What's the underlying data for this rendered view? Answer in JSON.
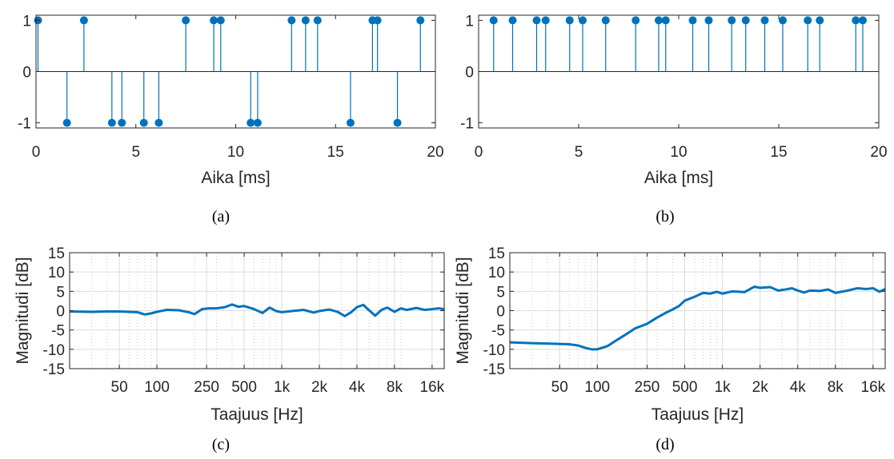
{
  "colors": {
    "series": "#0072bd",
    "axis": "#262626",
    "grid_major": "#dcdcdc",
    "grid_minor": "#e6e6e6"
  },
  "chart_data": [
    {
      "id": "a",
      "type": "stem",
      "caption": "(a)",
      "xlabel": "Aika [ms]",
      "ylabel": "",
      "xlim": [
        0,
        20
      ],
      "ylim": [
        -1.1,
        1.1
      ],
      "xticks": [
        0,
        5,
        10,
        15,
        20
      ],
      "xtick_labels": [
        "0",
        "5",
        "10",
        "15",
        "20"
      ],
      "yticks": [
        -1,
        0,
        1
      ],
      "ytick_labels": [
        "-1",
        "0",
        "1"
      ],
      "grid": false,
      "x": [
        0.1,
        1.55,
        2.4,
        3.8,
        4.3,
        5.4,
        6.15,
        7.5,
        8.9,
        9.25,
        10.75,
        11.1,
        12.8,
        13.5,
        14.1,
        15.75,
        16.85,
        17.1,
        18.1,
        19.25
      ],
      "y": [
        1,
        -1,
        1,
        -1,
        -1,
        -1,
        -1,
        1,
        1,
        1,
        -1,
        -1,
        1,
        1,
        1,
        -1,
        1,
        1,
        -1,
        1
      ]
    },
    {
      "id": "b",
      "type": "stem",
      "caption": "(b)",
      "xlabel": "Aika [ms]",
      "ylabel": "",
      "xlim": [
        0,
        20
      ],
      "ylim": [
        -1.1,
        1.1
      ],
      "xticks": [
        0,
        5,
        10,
        15,
        20
      ],
      "xtick_labels": [
        "0",
        "5",
        "10",
        "15",
        "20"
      ],
      "yticks": [
        -1,
        0,
        1
      ],
      "ytick_labels": [
        "-1",
        "0",
        "1"
      ],
      "grid": false,
      "x": [
        0.75,
        1.7,
        2.9,
        3.35,
        4.55,
        5.2,
        6.35,
        7.85,
        9.0,
        9.35,
        10.7,
        11.5,
        12.65,
        13.35,
        14.3,
        15.2,
        16.45,
        17.05,
        18.85,
        19.2
      ],
      "y": [
        1,
        1,
        1,
        1,
        1,
        1,
        1,
        1,
        1,
        1,
        1,
        1,
        1,
        1,
        1,
        1,
        1,
        1,
        1,
        1
      ]
    },
    {
      "id": "c",
      "type": "line",
      "caption": "(c)",
      "xlabel": "Taajuus [Hz]",
      "ylabel": "Magnitudi [dB]",
      "xscale": "log",
      "xlim": [
        20,
        20000
      ],
      "ylim": [
        -15,
        15
      ],
      "xticks": [
        50,
        100,
        250,
        500,
        1000,
        2000,
        4000,
        8000,
        16000
      ],
      "xtick_labels": [
        "50",
        "100",
        "250",
        "500",
        "1k",
        "2k",
        "4k",
        "8k",
        "16k"
      ],
      "yticks": [
        -15,
        -10,
        -5,
        0,
        5,
        10,
        15
      ],
      "ytick_labels": [
        "-15",
        "-10",
        "-5",
        "0",
        "5",
        "10",
        "15"
      ],
      "grid": true,
      "x": [
        20,
        30,
        40,
        50,
        60,
        70,
        80,
        90,
        100,
        120,
        150,
        180,
        200,
        230,
        260,
        300,
        350,
        400,
        450,
        500,
        600,
        700,
        800,
        900,
        1000,
        1200,
        1500,
        1800,
        2000,
        2400,
        2800,
        3200,
        3600,
        4000,
        4500,
        5000,
        5600,
        6300,
        7000,
        8000,
        9000,
        10000,
        12000,
        14000,
        16000,
        18000,
        20000
      ],
      "y": [
        -0.2,
        -0.3,
        -0.2,
        -0.2,
        -0.3,
        -0.4,
        -1.0,
        -0.7,
        -0.3,
        0.2,
        0.1,
        -0.4,
        -0.9,
        0.4,
        0.6,
        0.6,
        0.9,
        1.6,
        1.0,
        1.2,
        0.4,
        -0.6,
        0.8,
        -0.1,
        -0.4,
        -0.1,
        0.2,
        -0.5,
        -0.1,
        0.3,
        -0.3,
        -1.4,
        -0.4,
        0.9,
        1.5,
        0.1,
        -1.3,
        0.2,
        0.8,
        -0.3,
        0.6,
        0.2,
        0.7,
        0.2,
        0.4,
        0.6,
        0.4
      ]
    },
    {
      "id": "d",
      "type": "line",
      "caption": "(d)",
      "xlabel": "Taajuus [Hz]",
      "ylabel": "Magnitudi [dB]",
      "xscale": "log",
      "xlim": [
        20,
        20000
      ],
      "ylim": [
        -15,
        15
      ],
      "xticks": [
        50,
        100,
        250,
        500,
        1000,
        2000,
        4000,
        8000,
        16000
      ],
      "xtick_labels": [
        "50",
        "100",
        "250",
        "500",
        "1k",
        "2k",
        "4k",
        "8k",
        "16k"
      ],
      "yticks": [
        -15,
        -10,
        -5,
        0,
        5,
        10,
        15
      ],
      "ytick_labels": [
        "-15",
        "-10",
        "-5",
        "0",
        "5",
        "10",
        "15"
      ],
      "grid": true,
      "x": [
        20,
        30,
        40,
        50,
        60,
        70,
        80,
        90,
        100,
        120,
        150,
        180,
        200,
        250,
        300,
        350,
        400,
        450,
        500,
        600,
        700,
        800,
        900,
        1000,
        1200,
        1500,
        1800,
        2000,
        2400,
        2800,
        3200,
        3600,
        4000,
        4500,
        5000,
        6000,
        7000,
        8000,
        10000,
        12000,
        14000,
        16000,
        18000,
        20000
      ],
      "y": [
        -8.2,
        -8.4,
        -8.5,
        -8.6,
        -8.7,
        -9.0,
        -9.6,
        -10.0,
        -10.0,
        -9.2,
        -7.2,
        -5.6,
        -4.6,
        -3.4,
        -1.8,
        -0.6,
        0.3,
        1.2,
        2.6,
        3.6,
        4.6,
        4.4,
        4.9,
        4.4,
        5.0,
        4.8,
        6.2,
        5.9,
        6.1,
        5.2,
        5.5,
        5.8,
        5.2,
        4.7,
        5.2,
        5.1,
        5.5,
        4.6,
        5.2,
        5.8,
        5.6,
        5.8,
        4.9,
        5.6
      ]
    }
  ]
}
